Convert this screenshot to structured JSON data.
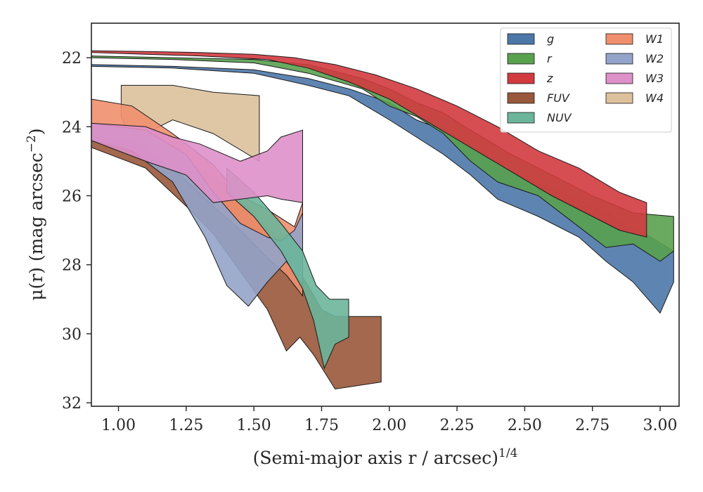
{
  "chart_data": {
    "type": "area",
    "xlabel": "(Semi-major axis r / arcsec)",
    "xlabel_exponent": "1/4",
    "ylabel": "μ(r) (mag arcsec",
    "ylabel_exponent": "−2",
    "xlim": [
      0.9,
      3.07
    ],
    "ylim": [
      32.1,
      21.0
    ],
    "y_inverted": true,
    "xticks": [
      1.0,
      1.25,
      1.5,
      1.75,
      2.0,
      2.25,
      2.5,
      2.75,
      3.0
    ],
    "xtick_labels": [
      "1.00",
      "1.25",
      "1.50",
      "1.75",
      "2.00",
      "2.25",
      "2.50",
      "2.75",
      "3.00"
    ],
    "yticks": [
      22,
      24,
      26,
      28,
      30,
      32
    ],
    "ytick_labels": [
      "22",
      "24",
      "26",
      "28",
      "30",
      "32"
    ],
    "grid": false,
    "legend_placement": "top-right",
    "legend_columns": 2,
    "series": [
      {
        "name": "g",
        "color": "#4c78a8",
        "upper": [
          [
            0.9,
            22.2
          ],
          [
            1.2,
            22.25
          ],
          [
            1.5,
            22.35
          ],
          [
            1.7,
            22.6
          ],
          [
            1.85,
            22.9
          ],
          [
            2.0,
            23.3
          ],
          [
            2.1,
            23.8
          ],
          [
            2.2,
            24.1
          ],
          [
            2.3,
            24.6
          ],
          [
            2.45,
            25.3
          ],
          [
            2.6,
            25.8
          ],
          [
            2.75,
            26.3
          ],
          [
            2.9,
            26.9
          ],
          [
            3.05,
            27.6
          ]
        ],
        "lower": [
          [
            3.05,
            28.5
          ],
          [
            3.0,
            29.4
          ],
          [
            2.9,
            28.5
          ],
          [
            2.8,
            27.9
          ],
          [
            2.7,
            27.2
          ],
          [
            2.55,
            26.6
          ],
          [
            2.4,
            26.1
          ],
          [
            2.3,
            25.4
          ],
          [
            2.2,
            24.8
          ],
          [
            2.1,
            24.3
          ],
          [
            2.0,
            23.8
          ],
          [
            1.85,
            23.1
          ],
          [
            1.7,
            22.8
          ],
          [
            1.5,
            22.45
          ],
          [
            1.2,
            22.3
          ],
          [
            0.9,
            22.25
          ]
        ]
      },
      {
        "name": "r",
        "color": "#59a14f",
        "upper": [
          [
            0.9,
            21.95
          ],
          [
            1.2,
            22.0
          ],
          [
            1.5,
            22.05
          ],
          [
            1.7,
            22.2
          ],
          [
            1.9,
            22.6
          ],
          [
            2.0,
            22.9
          ],
          [
            2.1,
            23.3
          ],
          [
            2.2,
            23.6
          ],
          [
            2.3,
            24.1
          ],
          [
            2.45,
            24.8
          ],
          [
            2.6,
            25.4
          ],
          [
            2.75,
            26.0
          ],
          [
            2.9,
            26.5
          ],
          [
            3.05,
            26.6
          ]
        ],
        "lower": [
          [
            3.05,
            27.6
          ],
          [
            3.0,
            27.9
          ],
          [
            2.9,
            27.4
          ],
          [
            2.8,
            27.5
          ],
          [
            2.7,
            26.9
          ],
          [
            2.55,
            26.0
          ],
          [
            2.4,
            25.6
          ],
          [
            2.3,
            25.0
          ],
          [
            2.2,
            24.2
          ],
          [
            2.1,
            23.7
          ],
          [
            2.0,
            23.4
          ],
          [
            1.9,
            22.9
          ],
          [
            1.7,
            22.45
          ],
          [
            1.5,
            22.15
          ],
          [
            1.2,
            22.05
          ],
          [
            0.9,
            22.0
          ]
        ]
      },
      {
        "name": "z",
        "color": "#d13a3f",
        "upper": [
          [
            0.9,
            21.8
          ],
          [
            1.1,
            21.82
          ],
          [
            1.3,
            21.85
          ],
          [
            1.5,
            21.9
          ],
          [
            1.65,
            22.0
          ],
          [
            1.8,
            22.2
          ],
          [
            1.95,
            22.5
          ],
          [
            2.1,
            22.9
          ],
          [
            2.25,
            23.4
          ],
          [
            2.4,
            24.0
          ],
          [
            2.55,
            24.7
          ],
          [
            2.7,
            25.2
          ],
          [
            2.85,
            25.9
          ],
          [
            2.95,
            26.2
          ]
        ],
        "lower": [
          [
            2.95,
            27.2
          ],
          [
            2.85,
            27.0
          ],
          [
            2.75,
            26.6
          ],
          [
            2.6,
            26.0
          ],
          [
            2.45,
            25.3
          ],
          [
            2.3,
            24.6
          ],
          [
            2.15,
            23.9
          ],
          [
            2.0,
            23.2
          ],
          [
            1.85,
            22.7
          ],
          [
            1.7,
            22.3
          ],
          [
            1.55,
            22.05
          ],
          [
            1.3,
            21.95
          ],
          [
            1.1,
            21.9
          ],
          [
            0.9,
            21.85
          ]
        ]
      },
      {
        "name": "FUV",
        "color": "#99583a",
        "upper": [
          [
            0.9,
            24.1
          ],
          [
            1.1,
            24.3
          ],
          [
            1.25,
            25.0
          ],
          [
            1.4,
            25.7
          ],
          [
            1.5,
            26.5
          ],
          [
            1.6,
            27.3
          ],
          [
            1.65,
            28.0
          ],
          [
            1.7,
            28.6
          ],
          [
            1.75,
            29.3
          ],
          [
            1.8,
            29.5
          ],
          [
            1.97,
            29.5
          ]
        ],
        "lower": [
          [
            1.97,
            31.4
          ],
          [
            1.8,
            31.6
          ],
          [
            1.72,
            30.6
          ],
          [
            1.67,
            30.1
          ],
          [
            1.62,
            30.5
          ],
          [
            1.55,
            29.3
          ],
          [
            1.45,
            28.2
          ],
          [
            1.35,
            27.1
          ],
          [
            1.25,
            26.3
          ],
          [
            1.1,
            25.2
          ],
          [
            0.9,
            24.6
          ]
        ]
      },
      {
        "name": "NUV",
        "color": "#6cb59a",
        "upper": [
          [
            1.4,
            25.2
          ],
          [
            1.5,
            25.9
          ],
          [
            1.6,
            26.8
          ],
          [
            1.68,
            27.6
          ],
          [
            1.73,
            28.6
          ],
          [
            1.78,
            29.0
          ],
          [
            1.85,
            29.0
          ]
        ],
        "lower": [
          [
            1.85,
            30.1
          ],
          [
            1.8,
            30.3
          ],
          [
            1.76,
            31.0
          ],
          [
            1.72,
            29.6
          ],
          [
            1.68,
            28.7
          ],
          [
            1.6,
            27.6
          ],
          [
            1.5,
            26.6
          ],
          [
            1.4,
            25.9
          ]
        ]
      },
      {
        "name": "W1",
        "color": "#ef8f6e",
        "upper": [
          [
            0.9,
            23.2
          ],
          [
            1.05,
            23.4
          ],
          [
            1.2,
            24.2
          ],
          [
            1.35,
            25.1
          ],
          [
            1.45,
            26.0
          ],
          [
            1.55,
            26.4
          ],
          [
            1.65,
            26.9
          ],
          [
            1.68,
            26.2
          ]
        ],
        "lower": [
          [
            1.68,
            28.9
          ],
          [
            1.62,
            28.3
          ],
          [
            1.55,
            27.8
          ],
          [
            1.45,
            27.0
          ],
          [
            1.35,
            26.3
          ],
          [
            1.2,
            25.2
          ],
          [
            1.05,
            24.4
          ],
          [
            0.9,
            24.3
          ]
        ]
      },
      {
        "name": "W2",
        "color": "#93a3c9",
        "upper": [
          [
            0.9,
            23.9
          ],
          [
            1.1,
            24.1
          ],
          [
            1.25,
            24.8
          ],
          [
            1.35,
            25.9
          ],
          [
            1.45,
            26.8
          ],
          [
            1.55,
            27.2
          ],
          [
            1.6,
            27.3
          ],
          [
            1.65,
            27.0
          ],
          [
            1.68,
            26.5
          ]
        ],
        "lower": [
          [
            1.68,
            28.6
          ],
          [
            1.62,
            27.9
          ],
          [
            1.55,
            28.5
          ],
          [
            1.48,
            29.2
          ],
          [
            1.4,
            28.6
          ],
          [
            1.32,
            27.2
          ],
          [
            1.2,
            25.6
          ],
          [
            1.05,
            24.7
          ],
          [
            0.9,
            24.4
          ]
        ]
      },
      {
        "name": "W3",
        "color": "#de90c9",
        "upper": [
          [
            0.9,
            23.9
          ],
          [
            1.1,
            24.0
          ],
          [
            1.2,
            24.3
          ],
          [
            1.3,
            24.5
          ],
          [
            1.45,
            25.0
          ],
          [
            1.55,
            24.7
          ],
          [
            1.6,
            24.3
          ],
          [
            1.68,
            24.1
          ]
        ],
        "lower": [
          [
            1.68,
            26.2
          ],
          [
            1.6,
            26.1
          ],
          [
            1.55,
            26.0
          ],
          [
            1.45,
            26.1
          ],
          [
            1.35,
            26.2
          ],
          [
            1.25,
            25.4
          ],
          [
            1.1,
            25.0
          ],
          [
            0.9,
            24.4
          ]
        ]
      },
      {
        "name": "W4",
        "color": "#dcc19c",
        "upper": [
          [
            1.01,
            22.8
          ],
          [
            1.2,
            22.8
          ],
          [
            1.35,
            23.0
          ],
          [
            1.52,
            23.1
          ]
        ],
        "lower": [
          [
            1.52,
            25.0
          ],
          [
            1.35,
            24.2
          ],
          [
            1.2,
            23.8
          ],
          [
            1.05,
            24.4
          ],
          [
            1.01,
            23.7
          ]
        ]
      }
    ]
  }
}
